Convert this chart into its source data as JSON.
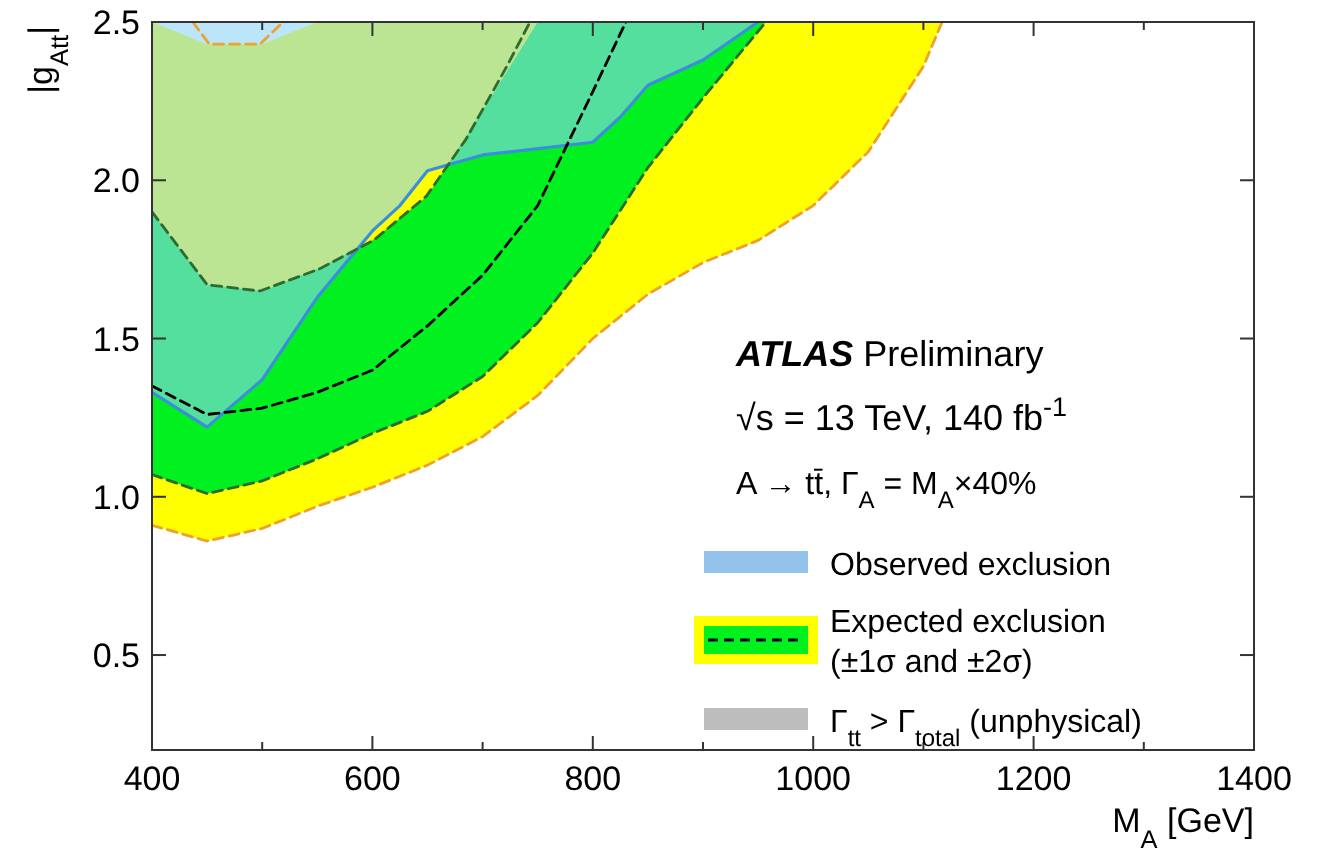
{
  "chart_data": {
    "type": "line",
    "xlabel": "M$_{A}$ [GeV]",
    "ylabel": "|g$_{Att}$|",
    "xlim": [
      400,
      1400
    ],
    "ylim": [
      0.2,
      2.5
    ],
    "xticks": [
      400,
      {
        "value": 500,
        "label": null
      },
      600,
      {
        "value": 700,
        "label": null
      },
      800,
      {
        "value": 900,
        "label": null
      },
      1000,
      {
        "value": 1100,
        "label": null
      },
      1200,
      {
        "value": 1300,
        "label": null
      },
      1400
    ],
    "yticks": [
      0.5,
      {
        "value": 1,
        "label": "1.0"
      },
      1.5,
      {
        "value": 2,
        "label": "2.0"
      },
      2.5
    ],
    "grid": false,
    "legend": "bottom right",
    "annotations": [
      "ATLAS Preliminary",
      "√s = 13 TeV, 140 fb$^{-1}$",
      "A → tt̄, Γ$_{A}$ = M$_{A}$×40%"
    ],
    "series": [
      {
        "color": "#f0a030",
        "line_style": "dashed",
        "x": [
          400,
          450,
          500,
          550,
          600,
          650,
          700,
          750,
          800,
          850,
          900,
          950,
          1000,
          1050,
          1100,
          1117
        ],
        "values": [
          0.91,
          0.86,
          0.9,
          0.97,
          1.03,
          1.1,
          1.19,
          1.32,
          1.5,
          1.64,
          1.74,
          1.81,
          1.92,
          2.09,
          2.36,
          2.5
        ],
        "lower": [
          0.91,
          0.86,
          0.9,
          0.97,
          1.03,
          1.1,
          1.19,
          1.32,
          1.5,
          1.64,
          1.74,
          1.81,
          1.92,
          2.09,
          2.36,
          2.5
        ],
        "upper": [
          2.5,
          2.43,
          2.43,
          2.5,
          2.5,
          2.5,
          2.5,
          2.5,
          2.5,
          2.5,
          2.5,
          2.5,
          2.5,
          2.5,
          2.5,
          2.5
        ]
      },
      {
        "color": "#2e6b2e",
        "line_style": "dashed",
        "x": [
          400,
          450,
          500,
          550,
          600,
          650,
          700,
          750,
          800,
          850,
          900,
          957
        ],
        "values": [
          1.07,
          1.01,
          1.05,
          1.12,
          1.2,
          1.27,
          1.38,
          1.55,
          1.77,
          2.04,
          2.26,
          2.5
        ],
        "lower": [
          1.07,
          1.01,
          1.05,
          1.12,
          1.2,
          1.27,
          1.38,
          1.55,
          1.77,
          2.04,
          2.26,
          2.5
        ],
        "upper": [
          1.9,
          1.67,
          1.65,
          1.72,
          1.81,
          1.95,
          2.22,
          2.5,
          2.5,
          2.5,
          2.5,
          2.5
        ]
      },
      {
        "name": "Observed exclusion",
        "color": "#3b8fd9",
        "line_style": "solid",
        "x": [
          400,
          450,
          500,
          550,
          600,
          625,
          650,
          700,
          800,
          825,
          850,
          900,
          950
        ],
        "values": [
          1.33,
          1.22,
          1.37,
          1.63,
          1.84,
          1.92,
          2.03,
          2.08,
          2.12,
          2.2,
          2.3,
          2.38,
          2.5
        ],
        "lower": [
          1.33,
          1.22,
          1.37,
          1.63,
          1.84,
          1.92,
          2.03,
          2.08,
          2.12,
          2.2,
          2.3,
          2.38,
          2.5
        ],
        "upper": [
          2.5,
          2.5,
          2.5,
          2.5,
          2.5,
          2.5,
          2.5,
          2.5,
          2.5,
          2.5,
          2.5,
          2.5,
          2.5
        ]
      },
      {
        "color": "#f0a030",
        "line_style": "dashed",
        "x": [
          437,
          452,
          498,
          519
        ],
        "values": [
          2.5,
          2.43,
          2.43,
          2.5
        ]
      },
      {
        "color": "#2e6b2e",
        "line_style": "dashed",
        "x": [
          400,
          450,
          498,
          552,
          601,
          649,
          685,
          722,
          743
        ],
        "values": [
          1.9,
          1.67,
          1.65,
          1.72,
          1.81,
          1.95,
          2.13,
          2.36,
          2.5
        ]
      },
      {
        "name": "Expected exclusion (±1σ and ±2σ)",
        "color": "#000000",
        "line_style": "dashed",
        "x": [
          400,
          450,
          500,
          550,
          600,
          650,
          700,
          750,
          775,
          800,
          830
        ],
        "values": [
          1.35,
          1.26,
          1.28,
          1.33,
          1.4,
          1.54,
          1.7,
          1.92,
          2.1,
          2.28,
          2.5
        ]
      },
      {
        "type": "area",
        "name": "Γ$_{tt}$ > Γ$_{total}$ (unphysical)",
        "color": "#bdbdbd"
      }
    ]
  }
}
